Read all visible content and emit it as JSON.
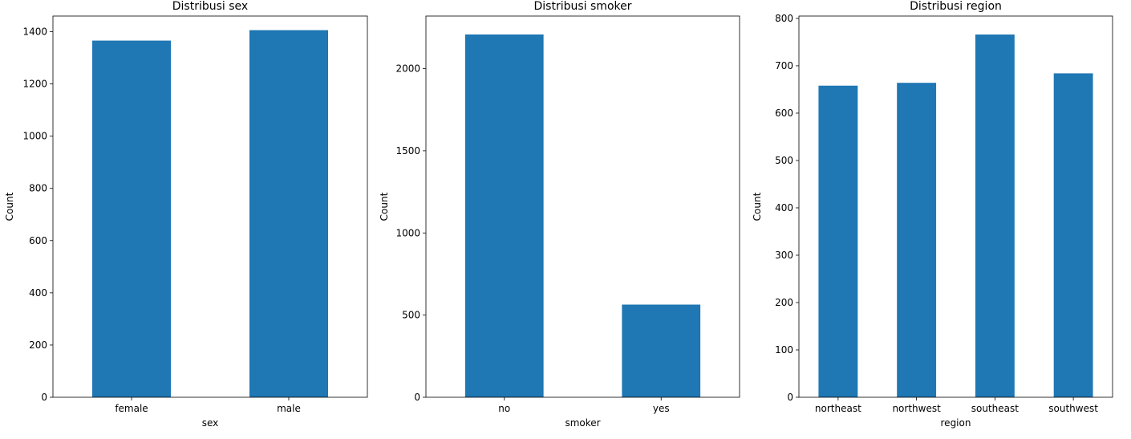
{
  "chart_data": [
    {
      "type": "bar",
      "title": "Distribusi sex",
      "xlabel": "sex",
      "ylabel": "Count",
      "categories": [
        "female",
        "male"
      ],
      "values": [
        1366,
        1406
      ],
      "ylim": [
        0,
        1460
      ],
      "yticks": [
        0,
        200,
        400,
        600,
        800,
        1000,
        1200,
        1400
      ],
      "color": "#1f77b4",
      "grid": false,
      "legend": "none"
    },
    {
      "type": "bar",
      "title": "Distribusi smoker",
      "xlabel": "smoker",
      "ylabel": "Count",
      "categories": [
        "no",
        "yes"
      ],
      "values": [
        2208,
        564
      ],
      "ylim": [
        0,
        2320
      ],
      "yticks": [
        0,
        500,
        1000,
        1500,
        2000
      ],
      "color": "#1f77b4",
      "grid": false,
      "legend": "none"
    },
    {
      "type": "bar",
      "title": "Distribusi region",
      "xlabel": "region",
      "ylabel": "Count",
      "categories": [
        "northeast",
        "northwest",
        "southeast",
        "southwest"
      ],
      "values": [
        658,
        664,
        766,
        684
      ],
      "ylim": [
        0,
        805
      ],
      "yticks": [
        0,
        100,
        200,
        300,
        400,
        500,
        600,
        700,
        800
      ],
      "color": "#1f77b4",
      "grid": false,
      "legend": "none"
    }
  ]
}
